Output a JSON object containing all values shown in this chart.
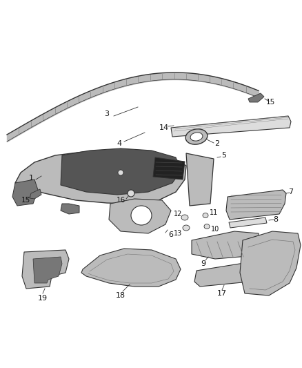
{
  "background_color": "#ffffff",
  "fig_width": 4.38,
  "fig_height": 5.33,
  "dpi": 100,
  "darkgray": "#333333",
  "midgray": "#777777",
  "lightgray": "#bbbbbb",
  "verylightgray": "#dddddd",
  "black": "#111111"
}
